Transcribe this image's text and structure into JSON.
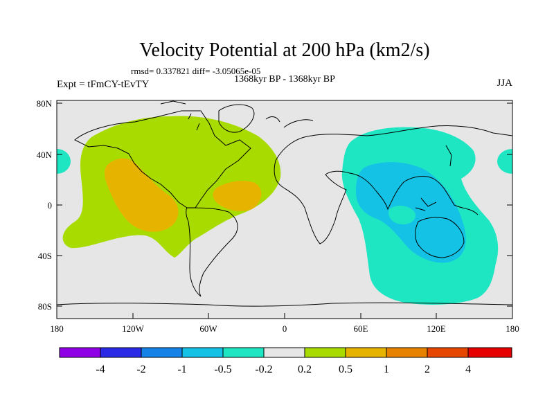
{
  "title": "Velocity Potential at 200 hPa (km2/s)",
  "stats": "rmsd= 0.337821  diff= -3.05065e-05",
  "period": "1368kyr BP - 1368kyr BP",
  "experiment": "Expt = tFmCY-tEvTY",
  "season": "JJA",
  "lat_labels": [
    "80N",
    "40N",
    "0",
    "40S",
    "80S"
  ],
  "lon_labels": [
    "180",
    "120W",
    "60W",
    "0",
    "60E",
    "120E",
    "180"
  ],
  "colorbar": {
    "colors": [
      "#8f00e6",
      "#2a2ae6",
      "#1482e6",
      "#14c2e6",
      "#1ee6c2",
      "#e6e6e6",
      "#a8dc00",
      "#e6b400",
      "#e68200",
      "#e64600",
      "#e60000"
    ],
    "labels": [
      "-4",
      "-2",
      "-1",
      "-0.5",
      "-0.2",
      "0.2",
      "0.5",
      "1",
      "2",
      "4"
    ]
  },
  "colors": {
    "land_background": "#e6e6e6",
    "positive_light": "#a8dc00",
    "positive_mid": "#e6b400",
    "negative_light": "#1ee6c2",
    "negative_mid": "#14c2e6"
  }
}
